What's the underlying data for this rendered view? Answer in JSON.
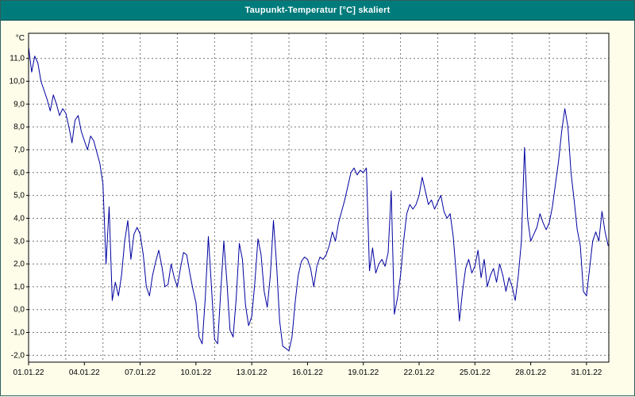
{
  "window": {
    "title": "Taupunkt-Temperatur [°C] skaliert"
  },
  "colors": {
    "title_bar": "#007B7B",
    "title_text": "#FFFFFF",
    "background": "#FDFDEA",
    "plot_background": "#FFFFFF",
    "line": "#0000A0",
    "grid": "#777777",
    "axis": "#000000"
  },
  "chart_data": {
    "type": "line",
    "title": "Taupunkt-Temperatur [°C] skaliert",
    "unit_label": "°C",
    "xlabel": "",
    "ylabel": "Taupunkt-Temperatur [°C]",
    "legend_position": "none",
    "grid": {
      "vertical_every_days": 2,
      "horizontal_every_units": 1,
      "style": "dashed"
    },
    "x_tick_labels": [
      "01.01.22",
      "04.01.22",
      "07.01.22",
      "10.01.22",
      "13.01.22",
      "16.01.22",
      "19.01.22",
      "22.01.22",
      "25.01.22",
      "28.01.22",
      "31.01.22"
    ],
    "x_tick_day_offsets": [
      0,
      3,
      6,
      9,
      12,
      15,
      18,
      21,
      24,
      27,
      30
    ],
    "x_range_days": [
      0,
      31.2
    ],
    "y_tick_labels": [
      "11,0",
      "10,0",
      "9,0",
      "8,0",
      "7,0",
      "6,0",
      "5,0",
      "4,0",
      "3,0",
      "2,0",
      "1,0",
      "0,0",
      "-1,0",
      "-2,0"
    ],
    "y_tick_values": [
      11,
      10,
      9,
      8,
      7,
      6,
      5,
      4,
      3,
      2,
      1,
      0,
      -1,
      -2
    ],
    "ylim": [
      -2.3,
      12.1
    ],
    "series": [
      {
        "name": "Taupunkt-Temperatur",
        "color": "#0000A0",
        "start_day": 0,
        "step_hours": 4,
        "values": [
          11.5,
          10.4,
          11.1,
          10.8,
          10.0,
          9.6,
          9.2,
          8.7,
          9.4,
          9.0,
          8.5,
          8.8,
          8.6,
          8.0,
          7.3,
          8.3,
          8.5,
          7.8,
          7.4,
          7.0,
          7.6,
          7.4,
          6.9,
          6.4,
          5.5,
          2.0,
          4.5,
          0.4,
          1.2,
          0.6,
          1.5,
          3.0,
          3.9,
          2.2,
          3.3,
          3.6,
          3.3,
          2.4,
          1.0,
          0.6,
          1.5,
          2.1,
          2.6,
          1.9,
          1.0,
          1.1,
          2.0,
          1.4,
          1.0,
          1.8,
          2.5,
          2.4,
          1.6,
          0.9,
          0.3,
          -1.2,
          -1.5,
          0.5,
          3.2,
          1.0,
          -1.3,
          -1.5,
          0.8,
          3.0,
          1.2,
          -0.9,
          -1.2,
          0.5,
          2.9,
          2.2,
          0.2,
          -0.7,
          -0.3,
          1.2,
          3.1,
          2.4,
          0.8,
          0.1,
          1.5,
          3.9,
          2.0,
          -0.5,
          -1.6,
          -1.7,
          -1.8,
          -1.2,
          0.3,
          1.5,
          2.1,
          2.3,
          2.2,
          1.8,
          1.0,
          1.9,
          2.3,
          2.2,
          2.4,
          2.8,
          3.4,
          3.0,
          3.8,
          4.3,
          4.8,
          5.4,
          6.0,
          6.2,
          5.9,
          6.1,
          6.0,
          6.2,
          1.7,
          2.7,
          1.6,
          2.0,
          2.2,
          1.9,
          2.5,
          5.2,
          -0.2,
          0.5,
          1.5,
          3.0,
          4.2,
          4.6,
          4.4,
          4.6,
          5.0,
          5.8,
          5.2,
          4.6,
          4.8,
          4.4,
          4.7,
          5.0,
          4.3,
          4.0,
          4.2,
          3.2,
          1.5,
          -0.5,
          0.8,
          1.8,
          2.2,
          1.6,
          1.9,
          2.6,
          1.4,
          2.2,
          1.0,
          1.5,
          1.8,
          1.2,
          2.0,
          1.5,
          0.8,
          1.4,
          1.0,
          0.4,
          1.5,
          3.0,
          7.1,
          4.0,
          3.0,
          3.3,
          3.6,
          4.2,
          3.8,
          3.5,
          3.8,
          4.5,
          5.5,
          6.5,
          7.8,
          8.8,
          8.0,
          6.0,
          4.8,
          3.5,
          2.8,
          0.8,
          0.6,
          1.8,
          3.0,
          3.4,
          3.0,
          4.3,
          3.4,
          2.8
        ]
      }
    ]
  }
}
